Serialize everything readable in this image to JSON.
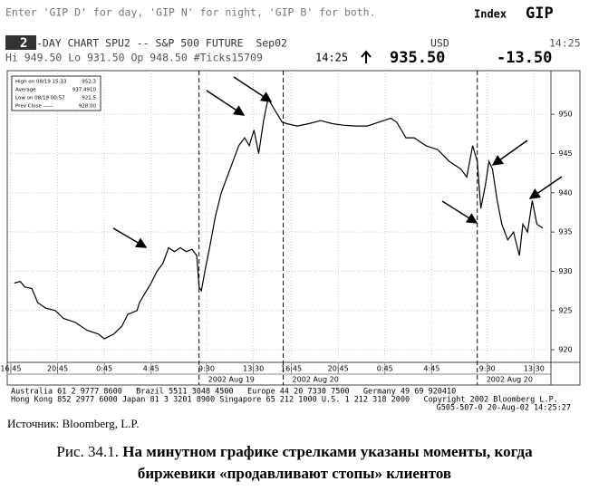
{
  "header": {
    "instructions": "Enter 'GIP D' for day, 'GIP N' for night, 'GIP B' for both.",
    "index_label": "Index",
    "index_code": "GIP",
    "days": "2",
    "chart_title": "-DAY CHART SPU2 -- S&P 500 FUTURE  Sep02",
    "currency": "USD",
    "time": "14:25",
    "stats": "Hi 949.50 Lo 931.50 Op 948.50 #Ticks15709",
    "last_time": "14:25",
    "last_price": "935.50",
    "change": "-13.50"
  },
  "legend": {
    "rows": [
      [
        "High on 08/19 15:33",
        "952.3"
      ],
      [
        "Average",
        "937.4910"
      ],
      [
        "Low on 08/19 00:57",
        "921.5"
      ],
      [
        "Prev Close ——",
        "928.00"
      ]
    ]
  },
  "chart_data": {
    "type": "line",
    "color": "#000000",
    "grid": true,
    "x": [
      0.3,
      0.8,
      1.2,
      1.8,
      2.3,
      3,
      3.8,
      4.5,
      5.5,
      6.5,
      7.5,
      8,
      8.8,
      9.5,
      10,
      10.8,
      11,
      11.6,
      12,
      12.5,
      13,
      13.5,
      14,
      14.5,
      15,
      15.5,
      15.9,
      16.1,
      16.3,
      16.6,
      17,
      17.5,
      18,
      18.5,
      19,
      19.5,
      20,
      20.4,
      20.8,
      21.2,
      21.6,
      22,
      22.4,
      22.8,
      23.2,
      23.6,
      24.5,
      25.5,
      26.5,
      27.5,
      28.5,
      29.5,
      30.5,
      31.5,
      32.5,
      33,
      33.4,
      33.8,
      34.5,
      35.5,
      36.5,
      37.5,
      38.5,
      39,
      39.5,
      39.9,
      40.2,
      40.6,
      40.9,
      41.2,
      41.6,
      42,
      42.5,
      43,
      43.5,
      43.8,
      44.2,
      44.6,
      45,
      45.5
    ],
    "values": [
      928.5,
      928.7,
      928,
      927.8,
      926,
      925.3,
      925,
      924,
      923.5,
      922.5,
      922,
      921.4,
      922,
      923,
      924.5,
      925,
      926,
      927.5,
      928.5,
      930,
      931,
      933,
      932.5,
      933,
      932.5,
      932.8,
      932,
      928,
      927.5,
      930,
      933,
      937,
      940,
      942,
      944,
      946,
      947,
      946,
      948,
      945,
      949,
      952,
      951,
      950,
      949,
      948.8,
      948.5,
      948.8,
      949.2,
      948.8,
      948.6,
      948.5,
      948.5,
      949,
      949.5,
      949,
      948,
      947,
      947,
      946,
      945.5,
      944,
      943,
      942,
      946,
      944,
      938,
      941,
      944,
      943,
      939,
      936,
      934,
      935,
      932,
      936,
      935,
      939,
      936,
      935.5
    ],
    "xlim": [
      -0.15,
      46.2
    ],
    "ylim": [
      918.4,
      954.4
    ],
    "xticks": [
      {
        "value": 0,
        "label": "16:45"
      },
      {
        "value": 4,
        "label": "20:45"
      },
      {
        "value": 8,
        "label": "0:45"
      },
      {
        "value": 12,
        "label": "4:45"
      },
      {
        "value": 16.75,
        "label": "9:30"
      },
      {
        "value": 20.75,
        "label": "13:30"
      },
      {
        "value": 24,
        "label": "16:45"
      },
      {
        "value": 28,
        "label": "20:45"
      },
      {
        "value": 32,
        "label": "0:45"
      },
      {
        "value": 36,
        "label": "4:45"
      },
      {
        "value": 40.75,
        "label": "9:30"
      },
      {
        "value": 44.75,
        "label": "13:30"
      }
    ],
    "yticks": [
      920,
      925,
      930,
      935,
      940,
      945,
      950
    ],
    "session_starts": [
      16.1,
      23.3,
      39.9
    ],
    "session_dates": [
      "2002 Aug 19",
      "2002 Aug 20",
      "2002 Aug 20"
    ]
  },
  "footer": {
    "lines": [
      "Australia 61 2 9777 8600   Brazil 5511 3048 4500   Europe 44 20 7330 7500   Germany 49 69 920410",
      "Hong Kong 852 2977 6000 Japan 81 3 3201 8900 Singapore 65 212 1000 U.S. 1 212 318 2000   Copyright 2002 Bloomberg L.P."
    ],
    "code": "G505-507-0 20-Aug-02 14:25:27"
  },
  "source": "Источник: Bloomberg, L.P.",
  "caption": {
    "label": "Рис. 34.1.",
    "lines": [
      "На минутном графике стрелками указаны моменты, когда",
      "биржевики «продавливают стопы» клиентов"
    ]
  }
}
